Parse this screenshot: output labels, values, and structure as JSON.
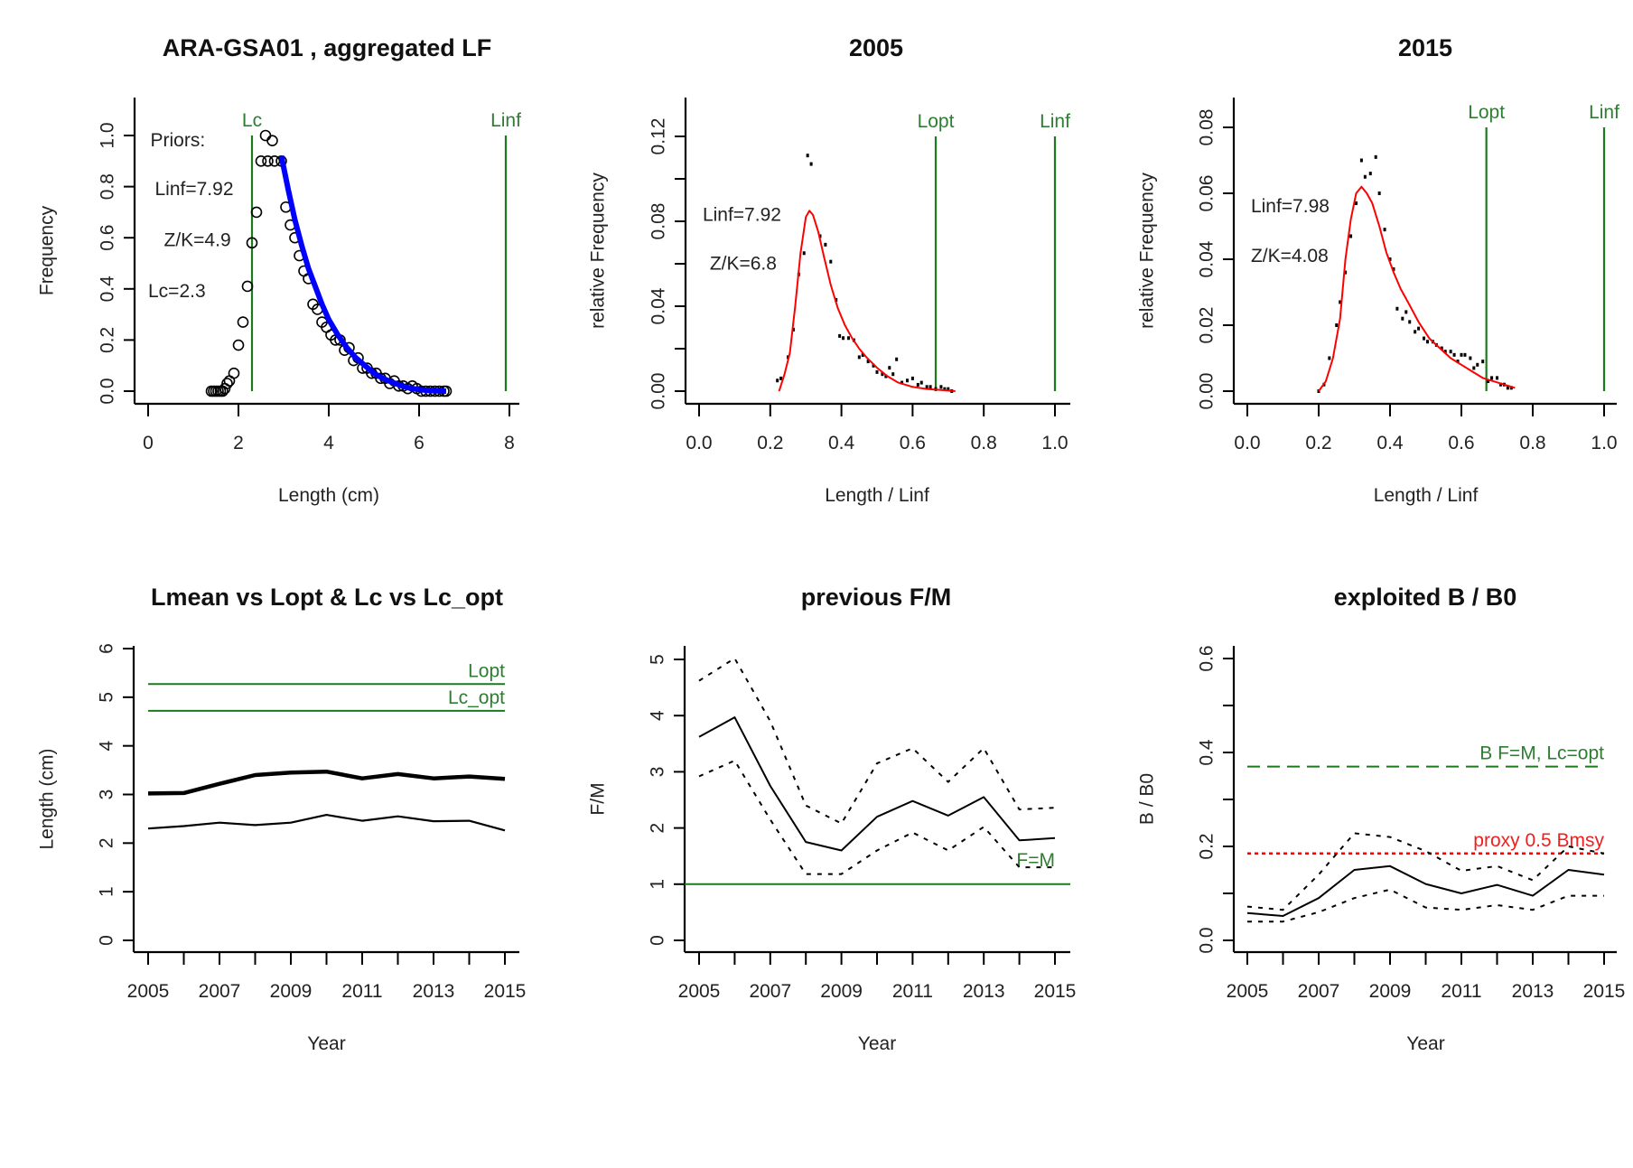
{
  "figure": {
    "colors": {
      "axis": "#000000",
      "reference_green": "#1b7a1b",
      "label_green": "#2e7d32",
      "fit_blue": "#0000ff",
      "fit_red": "#ff0000",
      "proxy_red": "#ff2020"
    }
  },
  "chart_data": [
    {
      "id": "p1",
      "type": "scatter",
      "title": "ARA-GSA01 , aggregated LF",
      "xlabel": "Length (cm)",
      "ylabel": "Frequency",
      "xlim": [
        0,
        8
      ],
      "ylim": [
        0,
        1.0
      ],
      "xticks": [
        0,
        2,
        4,
        6,
        8
      ],
      "xtick_labels": [
        "0",
        "2",
        "4",
        "6",
        "8"
      ],
      "yticks": [
        0,
        0.2,
        0.4,
        0.6,
        0.8,
        1.0
      ],
      "ytick_labels": [
        "0.0",
        "0.2",
        "0.4",
        "0.6",
        "0.8",
        "1.0"
      ],
      "grid": false,
      "annotations": [
        {
          "text": "Priors:",
          "x": 0.05,
          "y": 0.98
        },
        {
          "text": "Linf=7.92",
          "x": 0.15,
          "y": 0.79
        },
        {
          "text": "Z/K=4.9",
          "x": 0.35,
          "y": 0.59
        },
        {
          "text": "Lc=2.3",
          "x": 0.0,
          "y": 0.39
        }
      ],
      "vlines": [
        {
          "label": "Lc",
          "x": 2.3,
          "color": "green"
        },
        {
          "label": "Linf",
          "x": 7.92,
          "color": "green"
        }
      ],
      "series": [
        {
          "name": "observed LF",
          "style": "open-circle",
          "x": [
            1.4,
            1.45,
            1.5,
            1.55,
            1.6,
            1.65,
            1.7,
            1.75,
            1.8,
            1.9,
            2.0,
            2.1,
            2.2,
            2.3,
            2.4,
            2.5,
            2.6,
            2.65,
            2.75,
            2.8,
            2.95,
            3.05,
            3.15,
            3.25,
            3.35,
            3.45,
            3.55,
            3.65,
            3.75,
            3.85,
            3.95,
            4.05,
            4.15,
            4.25,
            4.35,
            4.45,
            4.55,
            4.65,
            4.75,
            4.85,
            4.95,
            5.05,
            5.15,
            5.25,
            5.35,
            5.45,
            5.55,
            5.65,
            5.75,
            5.85,
            5.95,
            6.05,
            6.15,
            6.25,
            6.35,
            6.45,
            6.55,
            6.6
          ],
          "y": [
            0.0,
            0.0,
            0.0,
            0.0,
            0.0,
            0.0,
            0.01,
            0.03,
            0.04,
            0.07,
            0.18,
            0.27,
            0.41,
            0.58,
            0.7,
            0.9,
            1.0,
            0.9,
            0.98,
            0.9,
            0.9,
            0.72,
            0.65,
            0.6,
            0.53,
            0.47,
            0.44,
            0.34,
            0.32,
            0.27,
            0.25,
            0.22,
            0.2,
            0.2,
            0.16,
            0.17,
            0.12,
            0.13,
            0.09,
            0.09,
            0.07,
            0.07,
            0.05,
            0.05,
            0.03,
            0.04,
            0.02,
            0.02,
            0.01,
            0.02,
            0.01,
            0.0,
            0.0,
            0.0,
            0.0,
            0.0,
            0.0,
            0.0
          ]
        },
        {
          "name": "fitted curve",
          "style": "thick-line",
          "color": "blue",
          "x": [
            2.95,
            3.1,
            3.25,
            3.4,
            3.55,
            3.7,
            3.85,
            4.0,
            4.2,
            4.4,
            4.6,
            4.8,
            5.0,
            5.2,
            5.4,
            5.6,
            5.8,
            6.0,
            6.2,
            6.4,
            6.6
          ],
          "y": [
            0.92,
            0.79,
            0.67,
            0.57,
            0.48,
            0.41,
            0.34,
            0.28,
            0.22,
            0.17,
            0.13,
            0.1,
            0.07,
            0.05,
            0.035,
            0.022,
            0.012,
            0.006,
            0.003,
            0.001,
            0.0
          ]
        }
      ]
    },
    {
      "id": "p2",
      "type": "scatter",
      "title": "2005",
      "xlabel": "Length / Linf",
      "ylabel": "relative Frequency",
      "xlim": [
        0,
        1.0
      ],
      "ylim": [
        0,
        0.12
      ],
      "xticks": [
        0,
        0.2,
        0.4,
        0.6,
        0.8,
        1.0
      ],
      "xtick_labels": [
        "0.0",
        "0.2",
        "0.4",
        "0.6",
        "0.8",
        "1.0"
      ],
      "yticks": [
        0,
        0.02,
        0.04,
        0.06,
        0.08,
        0.1,
        0.12
      ],
      "ytick_labels": [
        "0.00",
        "",
        "0.04",
        "",
        "0.08",
        "",
        "0.12"
      ],
      "grid": false,
      "annotations": [
        {
          "text": "Linf=7.92",
          "x": 0.01,
          "y": 0.083
        },
        {
          "text": "Z/K=6.8",
          "x": 0.03,
          "y": 0.06
        }
      ],
      "vlines": [
        {
          "label": "Lopt",
          "x": 0.665,
          "color": "green"
        },
        {
          "label": "Linf",
          "x": 1.0,
          "color": "green"
        }
      ],
      "series": [
        {
          "name": "observed",
          "style": "dot",
          "x": [
            0.22,
            0.23,
            0.25,
            0.265,
            0.28,
            0.295,
            0.305,
            0.315,
            0.34,
            0.355,
            0.37,
            0.385,
            0.395,
            0.405,
            0.42,
            0.435,
            0.45,
            0.46,
            0.475,
            0.49,
            0.5,
            0.515,
            0.525,
            0.535,
            0.545,
            0.555,
            0.57,
            0.585,
            0.6,
            0.615,
            0.625,
            0.64,
            0.65,
            0.665,
            0.68,
            0.69,
            0.7,
            0.71
          ],
          "y": [
            0.005,
            0.006,
            0.016,
            0.029,
            0.055,
            0.065,
            0.111,
            0.107,
            0.073,
            0.069,
            0.061,
            0.043,
            0.026,
            0.025,
            0.025,
            0.024,
            0.016,
            0.017,
            0.014,
            0.012,
            0.009,
            0.008,
            0.007,
            0.011,
            0.008,
            0.015,
            0.004,
            0.005,
            0.006,
            0.003,
            0.004,
            0.002,
            0.002,
            0.001,
            0.002,
            0.001,
            0.001,
            0.0
          ]
        },
        {
          "name": "fitted",
          "style": "line",
          "color": "red",
          "x": [
            0.225,
            0.24,
            0.255,
            0.27,
            0.285,
            0.3,
            0.31,
            0.32,
            0.335,
            0.35,
            0.37,
            0.39,
            0.41,
            0.43,
            0.45,
            0.47,
            0.5,
            0.53,
            0.56,
            0.6,
            0.64,
            0.68,
            0.72
          ],
          "y": [
            0.0,
            0.008,
            0.018,
            0.04,
            0.065,
            0.082,
            0.085,
            0.083,
            0.075,
            0.064,
            0.05,
            0.039,
            0.031,
            0.025,
            0.02,
            0.016,
            0.011,
            0.007,
            0.004,
            0.002,
            0.001,
            0.0005,
            0.0
          ]
        }
      ]
    },
    {
      "id": "p3",
      "type": "scatter",
      "title": "2015",
      "xlabel": "Length / Linf",
      "ylabel": "relative Frequency",
      "xlim": [
        0,
        1.0
      ],
      "ylim": [
        0,
        0.08
      ],
      "xticks": [
        0,
        0.2,
        0.4,
        0.6,
        0.8,
        1.0
      ],
      "xtick_labels": [
        "0.0",
        "0.2",
        "0.4",
        "0.6",
        "0.8",
        "1.0"
      ],
      "yticks": [
        0,
        0.02,
        0.04,
        0.06,
        0.08
      ],
      "ytick_labels": [
        "0.00",
        "0.02",
        "0.04",
        "0.06",
        "0.08"
      ],
      "grid": false,
      "annotations": [
        {
          "text": "Linf=7.98",
          "x": 0.01,
          "y": 0.056
        },
        {
          "text": "Z/K=4.08",
          "x": 0.01,
          "y": 0.041
        }
      ],
      "vlines": [
        {
          "label": "Lopt",
          "x": 0.67,
          "color": "green"
        },
        {
          "label": "Linf",
          "x": 1.0,
          "color": "green"
        }
      ],
      "series": [
        {
          "name": "observed",
          "style": "dot",
          "x": [
            0.2,
            0.215,
            0.23,
            0.25,
            0.26,
            0.275,
            0.29,
            0.305,
            0.32,
            0.33,
            0.345,
            0.36,
            0.37,
            0.385,
            0.4,
            0.41,
            0.42,
            0.435,
            0.445,
            0.455,
            0.47,
            0.48,
            0.495,
            0.505,
            0.52,
            0.53,
            0.545,
            0.555,
            0.57,
            0.58,
            0.59,
            0.6,
            0.61,
            0.625,
            0.635,
            0.645,
            0.66,
            0.675,
            0.685,
            0.7,
            0.71,
            0.72,
            0.73,
            0.74
          ],
          "y": [
            0.0,
            0.002,
            0.01,
            0.02,
            0.027,
            0.036,
            0.047,
            0.057,
            0.07,
            0.065,
            0.066,
            0.071,
            0.06,
            0.049,
            0.04,
            0.037,
            0.025,
            0.022,
            0.024,
            0.021,
            0.018,
            0.019,
            0.016,
            0.015,
            0.015,
            0.014,
            0.013,
            0.012,
            0.012,
            0.011,
            0.009,
            0.011,
            0.011,
            0.01,
            0.007,
            0.008,
            0.009,
            0.003,
            0.004,
            0.004,
            0.002,
            0.002,
            0.001,
            0.001
          ]
        },
        {
          "name": "fitted",
          "style": "line",
          "color": "red",
          "x": [
            0.2,
            0.22,
            0.24,
            0.26,
            0.275,
            0.29,
            0.305,
            0.32,
            0.335,
            0.35,
            0.37,
            0.39,
            0.41,
            0.43,
            0.45,
            0.48,
            0.51,
            0.54,
            0.57,
            0.6,
            0.63,
            0.66,
            0.69,
            0.72,
            0.75
          ],
          "y": [
            0.0,
            0.003,
            0.01,
            0.022,
            0.04,
            0.052,
            0.06,
            0.062,
            0.06,
            0.057,
            0.05,
            0.042,
            0.036,
            0.031,
            0.027,
            0.021,
            0.016,
            0.013,
            0.01,
            0.008,
            0.006,
            0.004,
            0.003,
            0.002,
            0.001
          ]
        }
      ]
    },
    {
      "id": "p4",
      "type": "line",
      "title": "Lmean vs Lopt & Lc vs Lc_opt",
      "xlabel": "Year",
      "ylabel": "Length (cm)",
      "xlim": [
        2005,
        2015
      ],
      "ylim": [
        0,
        6
      ],
      "xticks": [
        2005,
        2006,
        2007,
        2008,
        2009,
        2010,
        2011,
        2012,
        2013,
        2014,
        2015
      ],
      "xtick_labels": [
        "2005",
        "",
        "2007",
        "",
        "2009",
        "",
        "2011",
        "",
        "2013",
        "",
        "2015"
      ],
      "yticks": [
        0,
        1,
        2,
        3,
        4,
        5,
        6
      ],
      "ytick_labels": [
        "0",
        "1",
        "2",
        "3",
        "4",
        "5",
        "6"
      ],
      "grid": false,
      "hlines": [
        {
          "label": "Lopt",
          "y": 5.27,
          "color": "green",
          "style": "solid"
        },
        {
          "label": "Lc_opt",
          "y": 4.72,
          "color": "green",
          "style": "solid"
        }
      ],
      "x": [
        2005,
        2006,
        2007,
        2008,
        2009,
        2010,
        2011,
        2012,
        2013,
        2014,
        2015
      ],
      "series": [
        {
          "name": "Lmean",
          "style": "thick",
          "values": [
            3.02,
            3.03,
            3.22,
            3.4,
            3.45,
            3.47,
            3.33,
            3.42,
            3.33,
            3.37,
            3.32
          ]
        },
        {
          "name": "Lc",
          "style": "thin-dashed",
          "values": [
            2.3,
            2.35,
            2.42,
            2.37,
            2.42,
            2.58,
            2.46,
            2.55,
            2.45,
            2.46,
            2.26
          ]
        }
      ]
    },
    {
      "id": "p5",
      "type": "line",
      "title": "previous F/M",
      "xlabel": "Year",
      "ylabel": "F/M",
      "xlim": [
        2005,
        2015
      ],
      "ylim": [
        0,
        5
      ],
      "xticks": [
        2005,
        2006,
        2007,
        2008,
        2009,
        2010,
        2011,
        2012,
        2013,
        2014,
        2015
      ],
      "xtick_labels": [
        "2005",
        "",
        "2007",
        "",
        "2009",
        "",
        "2011",
        "",
        "2013",
        "",
        "2015"
      ],
      "yticks": [
        0,
        1,
        2,
        3,
        4,
        5
      ],
      "ytick_labels": [
        "0",
        "1",
        "2",
        "3",
        "4",
        "5"
      ],
      "grid": false,
      "hlines": [
        {
          "label": "F=M",
          "y": 1.0,
          "color": "green",
          "style": "solid"
        }
      ],
      "x": [
        2005,
        2006,
        2007,
        2008,
        2009,
        2010,
        2011,
        2012,
        2013,
        2014,
        2015
      ],
      "series": [
        {
          "name": "F/M",
          "style": "solid",
          "values": [
            3.62,
            3.97,
            2.75,
            1.75,
            1.6,
            2.2,
            2.48,
            2.22,
            2.55,
            1.78,
            1.82
          ]
        },
        {
          "name": "upper",
          "style": "dotted",
          "values": [
            4.62,
            5.02,
            3.9,
            2.4,
            2.08,
            3.15,
            3.42,
            2.82,
            3.42,
            2.33,
            2.36
          ]
        },
        {
          "name": "lower",
          "style": "dotted",
          "values": [
            2.92,
            3.2,
            2.15,
            1.18,
            1.18,
            1.6,
            1.92,
            1.6,
            2.02,
            1.3,
            1.3
          ]
        }
      ]
    },
    {
      "id": "p6",
      "type": "line",
      "title": "exploited B / B0",
      "xlabel": "Year",
      "ylabel": "B / B0",
      "xlim": [
        2005,
        2015
      ],
      "ylim": [
        0,
        0.6
      ],
      "xticks": [
        2005,
        2006,
        2007,
        2008,
        2009,
        2010,
        2011,
        2012,
        2013,
        2014,
        2015
      ],
      "xtick_labels": [
        "2005",
        "",
        "2007",
        "",
        "2009",
        "",
        "2011",
        "",
        "2013",
        "",
        "2015"
      ],
      "yticks": [
        0,
        0.1,
        0.2,
        0.3,
        0.4,
        0.5,
        0.6
      ],
      "ytick_labels": [
        "0.0",
        "",
        "0.2",
        "",
        "0.4",
        "",
        "0.6"
      ],
      "grid": false,
      "hlines": [
        {
          "label": "B F=M, Lc=opt",
          "y": 0.37,
          "color": "green",
          "style": "dashed"
        },
        {
          "label": "proxy 0.5 Bmsy",
          "y": 0.185,
          "color": "red",
          "style": "dotted"
        }
      ],
      "x": [
        2005,
        2006,
        2007,
        2008,
        2009,
        2010,
        2011,
        2012,
        2013,
        2014,
        2015
      ],
      "series": [
        {
          "name": "B/B0",
          "style": "solid",
          "values": [
            0.058,
            0.052,
            0.09,
            0.15,
            0.158,
            0.12,
            0.1,
            0.118,
            0.095,
            0.15,
            0.14
          ]
        },
        {
          "name": "upper",
          "style": "dotted",
          "values": [
            0.072,
            0.065,
            0.14,
            0.228,
            0.22,
            0.19,
            0.148,
            0.158,
            0.128,
            0.2,
            0.185
          ]
        },
        {
          "name": "lower",
          "style": "dotted",
          "values": [
            0.04,
            0.04,
            0.06,
            0.09,
            0.108,
            0.07,
            0.065,
            0.075,
            0.065,
            0.095,
            0.095
          ]
        }
      ]
    }
  ]
}
